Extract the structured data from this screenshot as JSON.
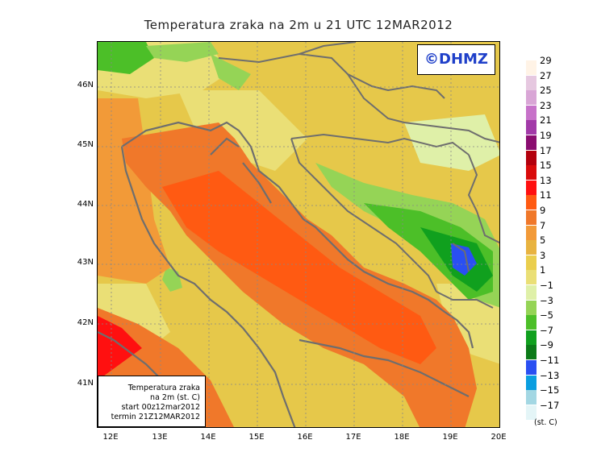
{
  "title": "Temperatura zraka na 2m u 21 UTC 12MAR2012",
  "logo": "©DHMZ",
  "info": {
    "line1": "Temperatura zraka",
    "line2": "na 2m (st. C)",
    "line3": "start 00z12mar2012",
    "line4": "termin 21Z12MAR2012"
  },
  "lat_labels": [
    "46N",
    "45N",
    "44N",
    "43N",
    "42N",
    "41N"
  ],
  "lon_labels": [
    "12E",
    "13E",
    "14E",
    "15E",
    "16E",
    "17E",
    "18E",
    "19E",
    "20E"
  ],
  "legend": {
    "levels": [
      "29",
      "27",
      "25",
      "23",
      "21",
      "19",
      "17",
      "15",
      "13",
      "11",
      "9",
      "7",
      "5",
      "3",
      "1",
      "−1",
      "−3",
      "−5",
      "−7",
      "−9",
      "−11",
      "−13",
      "−15",
      "−17"
    ],
    "colors": [
      "#fff3e6",
      "#e6c8e0",
      "#d9a6d6",
      "#c772c9",
      "#a23aa8",
      "#8a0d70",
      "#b3000d",
      "#d90b0b",
      "#ff1010",
      "#ff5a12",
      "#f0782a",
      "#f29a38",
      "#e8b340",
      "#eace4d",
      "#eadf76",
      "#dff0a8",
      "#95d456",
      "#4cbf28",
      "#10a01e",
      "#0c7a18",
      "#2a4ff2",
      "#0a9ee0",
      "#a3d7e3",
      "#e4f5f7"
    ],
    "units": "(st. C)"
  }
}
